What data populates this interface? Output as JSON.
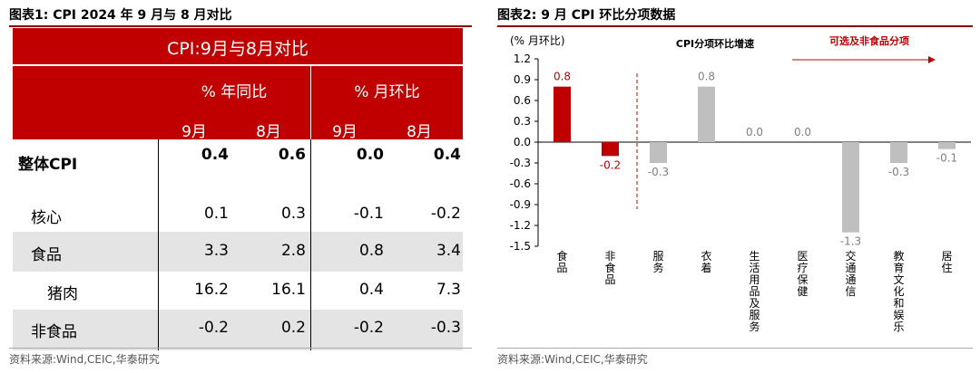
{
  "left": {
    "figure_title": "图表1:  CPI 2024 年 9 月与 8 月对比",
    "table_title": "CPI:9月与8月对比",
    "group_headers": [
      "% 年同比",
      "% 月环比"
    ],
    "month_headers": [
      "9月",
      "8月",
      "9月",
      "8月"
    ],
    "rows": [
      {
        "label": "整体CPI",
        "values": [
          "0.4",
          "0.6",
          "0.0",
          "0.4"
        ],
        "bold": true,
        "indent": false,
        "shaded": false
      },
      {
        "label": "核心",
        "values": [
          "0.1",
          "0.3",
          "-0.1",
          "-0.2"
        ],
        "bold": false,
        "indent": true,
        "shaded": false
      },
      {
        "label": "食品",
        "values": [
          "3.3",
          "2.8",
          "0.8",
          "3.4"
        ],
        "bold": false,
        "indent": true,
        "shaded": true
      },
      {
        "label": "猪肉",
        "values": [
          "16.2",
          "16.1",
          "0.4",
          "7.3"
        ],
        "bold": false,
        "indent": "deep",
        "shaded": false
      },
      {
        "label": "非食品",
        "values": [
          "-0.2",
          "0.2",
          "-0.2",
          "-0.3"
        ],
        "bold": false,
        "indent": true,
        "shaded": true
      }
    ],
    "source": "资料来源:Wind,CEIC,华泰研究"
  },
  "right": {
    "figure_title": "图表2:  9 月 CPI 环比分项数据",
    "source": "资料来源:Wind,CEIC,华泰研究"
  },
  "chart_data": {
    "type": "bar",
    "title": "CPI分项环比增速",
    "ylabel": "(% 月环比)",
    "annotation": "可选及非食品分项",
    "ylim": [
      -1.5,
      1.2
    ],
    "yticks": [
      "1.2",
      "0.9",
      "0.6",
      "0.3",
      "0.0",
      "-0.3",
      "-0.6",
      "-0.9",
      "-1.2",
      "-1.5"
    ],
    "categories": [
      "食品",
      "非食品",
      "服务",
      "衣着",
      "生活用品及服务",
      "医疗保健",
      "交通通信",
      "教育文化和娱乐",
      "居住"
    ],
    "values": [
      0.8,
      -0.2,
      -0.3,
      0.8,
      0.0,
      0.0,
      -1.3,
      -0.3,
      -0.1
    ],
    "value_labels": [
      "0.8",
      "-0.2",
      "-0.3",
      "0.8",
      "0.0",
      "0.0",
      "-1.3",
      "-0.3",
      "-0.1"
    ],
    "highlight_count": 2,
    "colors": {
      "highlight": "#c00000",
      "normal": "#bfbfbf",
      "label_highlight": "#c00000",
      "label_normal": "#7f7f7f"
    },
    "grid": false
  }
}
